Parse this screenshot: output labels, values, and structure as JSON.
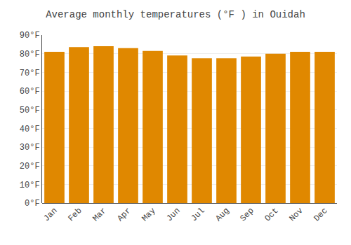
{
  "chart_data": {
    "type": "bar",
    "title": "Average monthly temperatures (°F ) in Ouidah",
    "categories": [
      "Jan",
      "Feb",
      "Mar",
      "Apr",
      "May",
      "Jun",
      "Jul",
      "Aug",
      "Sep",
      "Oct",
      "Nov",
      "Dec"
    ],
    "values": [
      81.0,
      83.5,
      84.0,
      83.0,
      81.5,
      79.0,
      77.5,
      77.5,
      78.5,
      80.0,
      81.0,
      81.0
    ],
    "color": "#E08800",
    "ylim": [
      0,
      90
    ],
    "yticks": [
      {
        "value": 0,
        "label": "0°F"
      },
      {
        "value": 10,
        "label": "10°F"
      },
      {
        "value": 20,
        "label": "20°F"
      },
      {
        "value": 30,
        "label": "30°F"
      },
      {
        "value": 40,
        "label": "40°F"
      },
      {
        "value": 50,
        "label": "50°F"
      },
      {
        "value": 60,
        "label": "60°F"
      },
      {
        "value": 70,
        "label": "70°F"
      },
      {
        "value": 80,
        "label": "80°F"
      },
      {
        "value": 90,
        "label": "90°F"
      }
    ],
    "grid": true
  }
}
